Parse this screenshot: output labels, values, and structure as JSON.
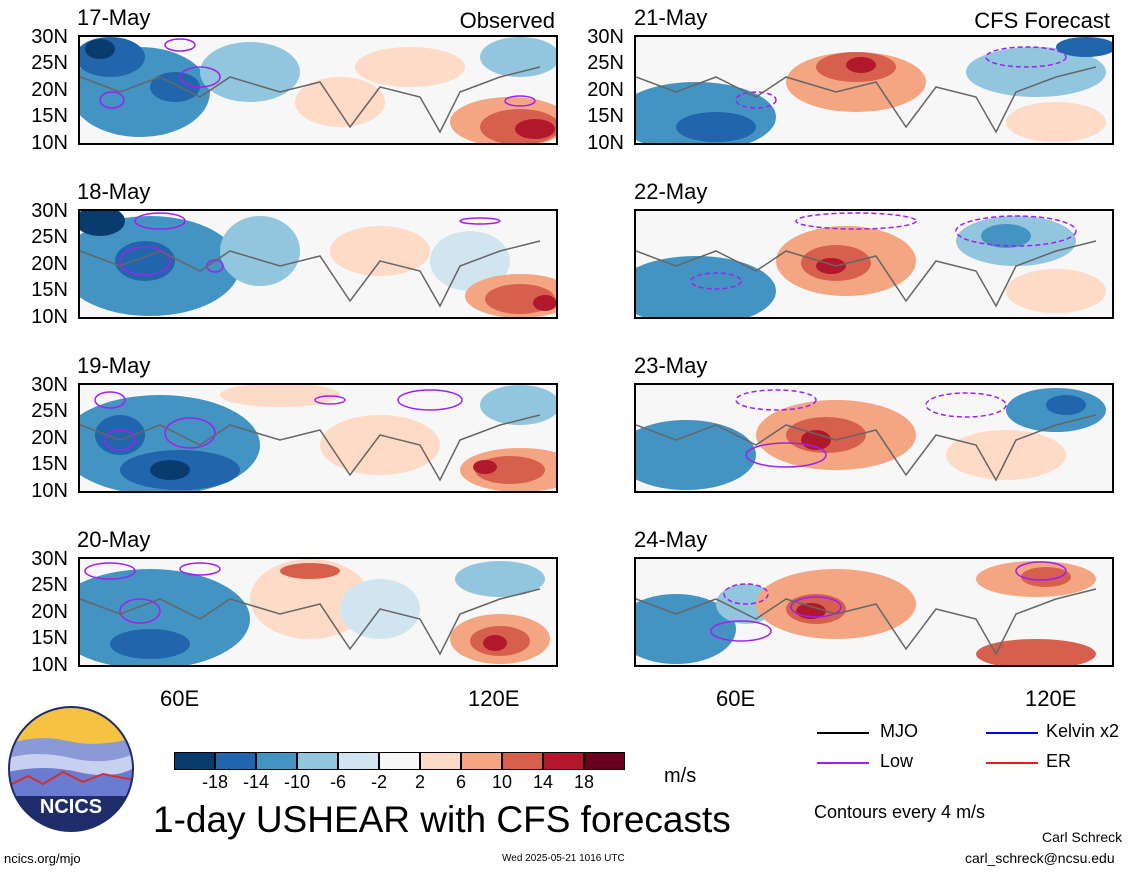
{
  "panels_left": [
    {
      "date": "17-May",
      "tag": "Observed"
    },
    {
      "date": "18-May",
      "tag": ""
    },
    {
      "date": "19-May",
      "tag": ""
    },
    {
      "date": "20-May",
      "tag": ""
    }
  ],
  "panels_right": [
    {
      "date": "21-May",
      "tag": "CFS Forecast"
    },
    {
      "date": "22-May",
      "tag": ""
    },
    {
      "date": "23-May",
      "tag": ""
    },
    {
      "date": "24-May",
      "tag": ""
    }
  ],
  "lat_labels": [
    "30N",
    "25N",
    "20N",
    "15N",
    "10N"
  ],
  "lon_labels": [
    "60E",
    "120E"
  ],
  "legend": {
    "mjo": "MJO",
    "kelvin": "Kelvin x2",
    "low": "Low",
    "er": "ER",
    "colors": {
      "mjo": "#000000",
      "kelvin": "#0000ff",
      "low": "#a020f0",
      "er": "#e02020"
    }
  },
  "colorbar": {
    "ticks": [
      "-18",
      "-14",
      "-10",
      "-6",
      "-2",
      "2",
      "6",
      "10",
      "14",
      "18"
    ],
    "colors": [
      "#0a3b6e",
      "#2166ac",
      "#4393c3",
      "#92c5de",
      "#d1e5f0",
      "#f7f7f7",
      "#fddbc7",
      "#f4a582",
      "#d6604d",
      "#b2182b",
      "#67001f"
    ],
    "units": "m/s"
  },
  "title": "1-day USHEAR with CFS forecasts",
  "contour_note": "Contours every 4 m/s",
  "logo_text": "NCICS",
  "footer": {
    "left": "ncics.org/mjo",
    "center": "Wed 2025-05-21 1016 UTC",
    "author": "Carl Schreck",
    "email": "carl_schreck@ncsu.edu"
  }
}
